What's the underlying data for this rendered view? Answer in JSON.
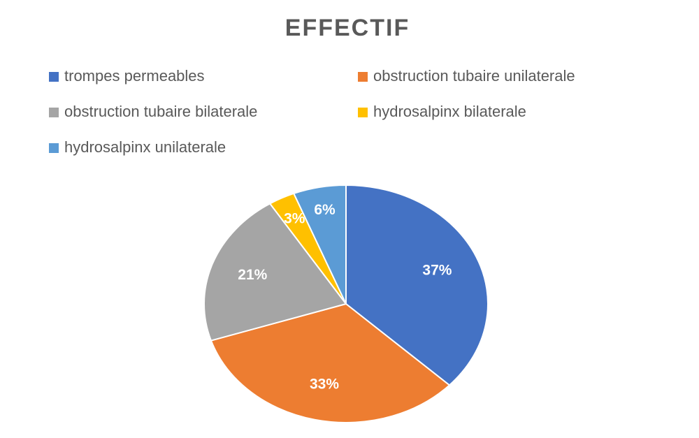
{
  "chart_data": {
    "type": "pie",
    "title": "EFFECTIF",
    "categories": [
      "trompes permeables",
      "obstruction tubaire unilaterale",
      "obstruction tubaire bilaterale",
      "hydrosalpinx bilaterale",
      "hydrosalpinx unilaterale"
    ],
    "values": [
      37,
      33,
      21,
      3,
      6
    ],
    "value_labels": [
      "37%",
      "33%",
      "21%",
      "3%",
      "6%"
    ],
    "colors": [
      "#4472c4",
      "#ed7d31",
      "#a5a5a5",
      "#ffc000",
      "#5b9bd5"
    ],
    "legend": "top"
  }
}
